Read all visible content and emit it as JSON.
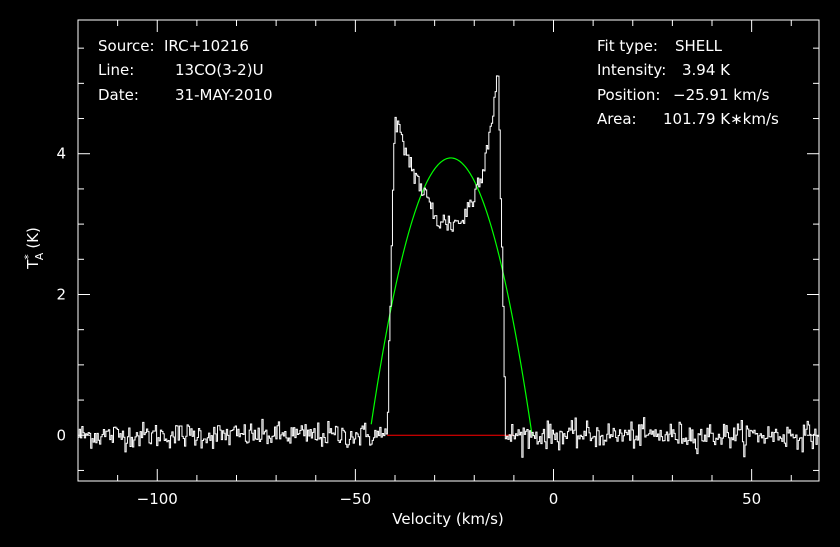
{
  "info_left": [
    {
      "key": "Source:",
      "value": "IRC+10216"
    },
    {
      "key": "Line:",
      "value": "13CO(3-2)U"
    },
    {
      "key": "Date:",
      "value": "31-MAY-2010"
    }
  ],
  "info_right": [
    {
      "key": "Fit type:",
      "value": "SHELL"
    },
    {
      "key": "Intensity:",
      "value": "3.94 K"
    },
    {
      "key": "Position:",
      "value": "−25.91 km/s"
    },
    {
      "key": "Area:",
      "value": "101.79 K∗km/s"
    }
  ],
  "colors": {
    "background": "#000000",
    "spectrum": "#ffffff",
    "fit": "#00ff00",
    "baseline": "#ff0000",
    "axes": "#ffffff"
  },
  "chart_data": {
    "type": "line",
    "xlabel": "Velocity (km/s)",
    "ylabel": "T",
    "ylabel_sup": "*",
    "ylabel_sub": "A",
    "ylabel_unit": "(K)",
    "xlim": [
      -120,
      67
    ],
    "ylim": [
      -0.65,
      5.9
    ],
    "x_ticks": [
      -100,
      -50,
      0,
      50
    ],
    "x_tick_labels": [
      "−100",
      "−50",
      "0",
      "50"
    ],
    "y_ticks": [
      0,
      2,
      4
    ],
    "y_tick_labels": [
      "0",
      "2",
      "4"
    ],
    "grid": false,
    "channel_width_kms": 0.32,
    "rms_noise_K": 0.09,
    "series": [
      {
        "kind": "spectrum",
        "x_range": [
          -120,
          67
        ],
        "key_points": [
          {
            "x": -42,
            "y": 0.0
          },
          {
            "x": -40,
            "y": 4.45
          },
          {
            "x": -36,
            "y": 3.85
          },
          {
            "x": -32,
            "y": 3.35
          },
          {
            "x": -29,
            "y": 3.05
          },
          {
            "x": -26,
            "y": 3.0
          },
          {
            "x": -23,
            "y": 3.05
          },
          {
            "x": -20,
            "y": 3.4
          },
          {
            "x": -17,
            "y": 4.0
          },
          {
            "x": -14.5,
            "y": 4.9
          },
          {
            "x": -14,
            "y": 5.3
          },
          {
            "x": -12,
            "y": 0.0
          }
        ]
      },
      {
        "kind": "fit",
        "model": "SHELL",
        "center_kms": -25.91,
        "peak_K": 3.94,
        "x_range": [
          -46,
          -5
        ]
      },
      {
        "kind": "baseline",
        "x_range": [
          -42,
          -10
        ],
        "y": 0
      }
    ]
  }
}
